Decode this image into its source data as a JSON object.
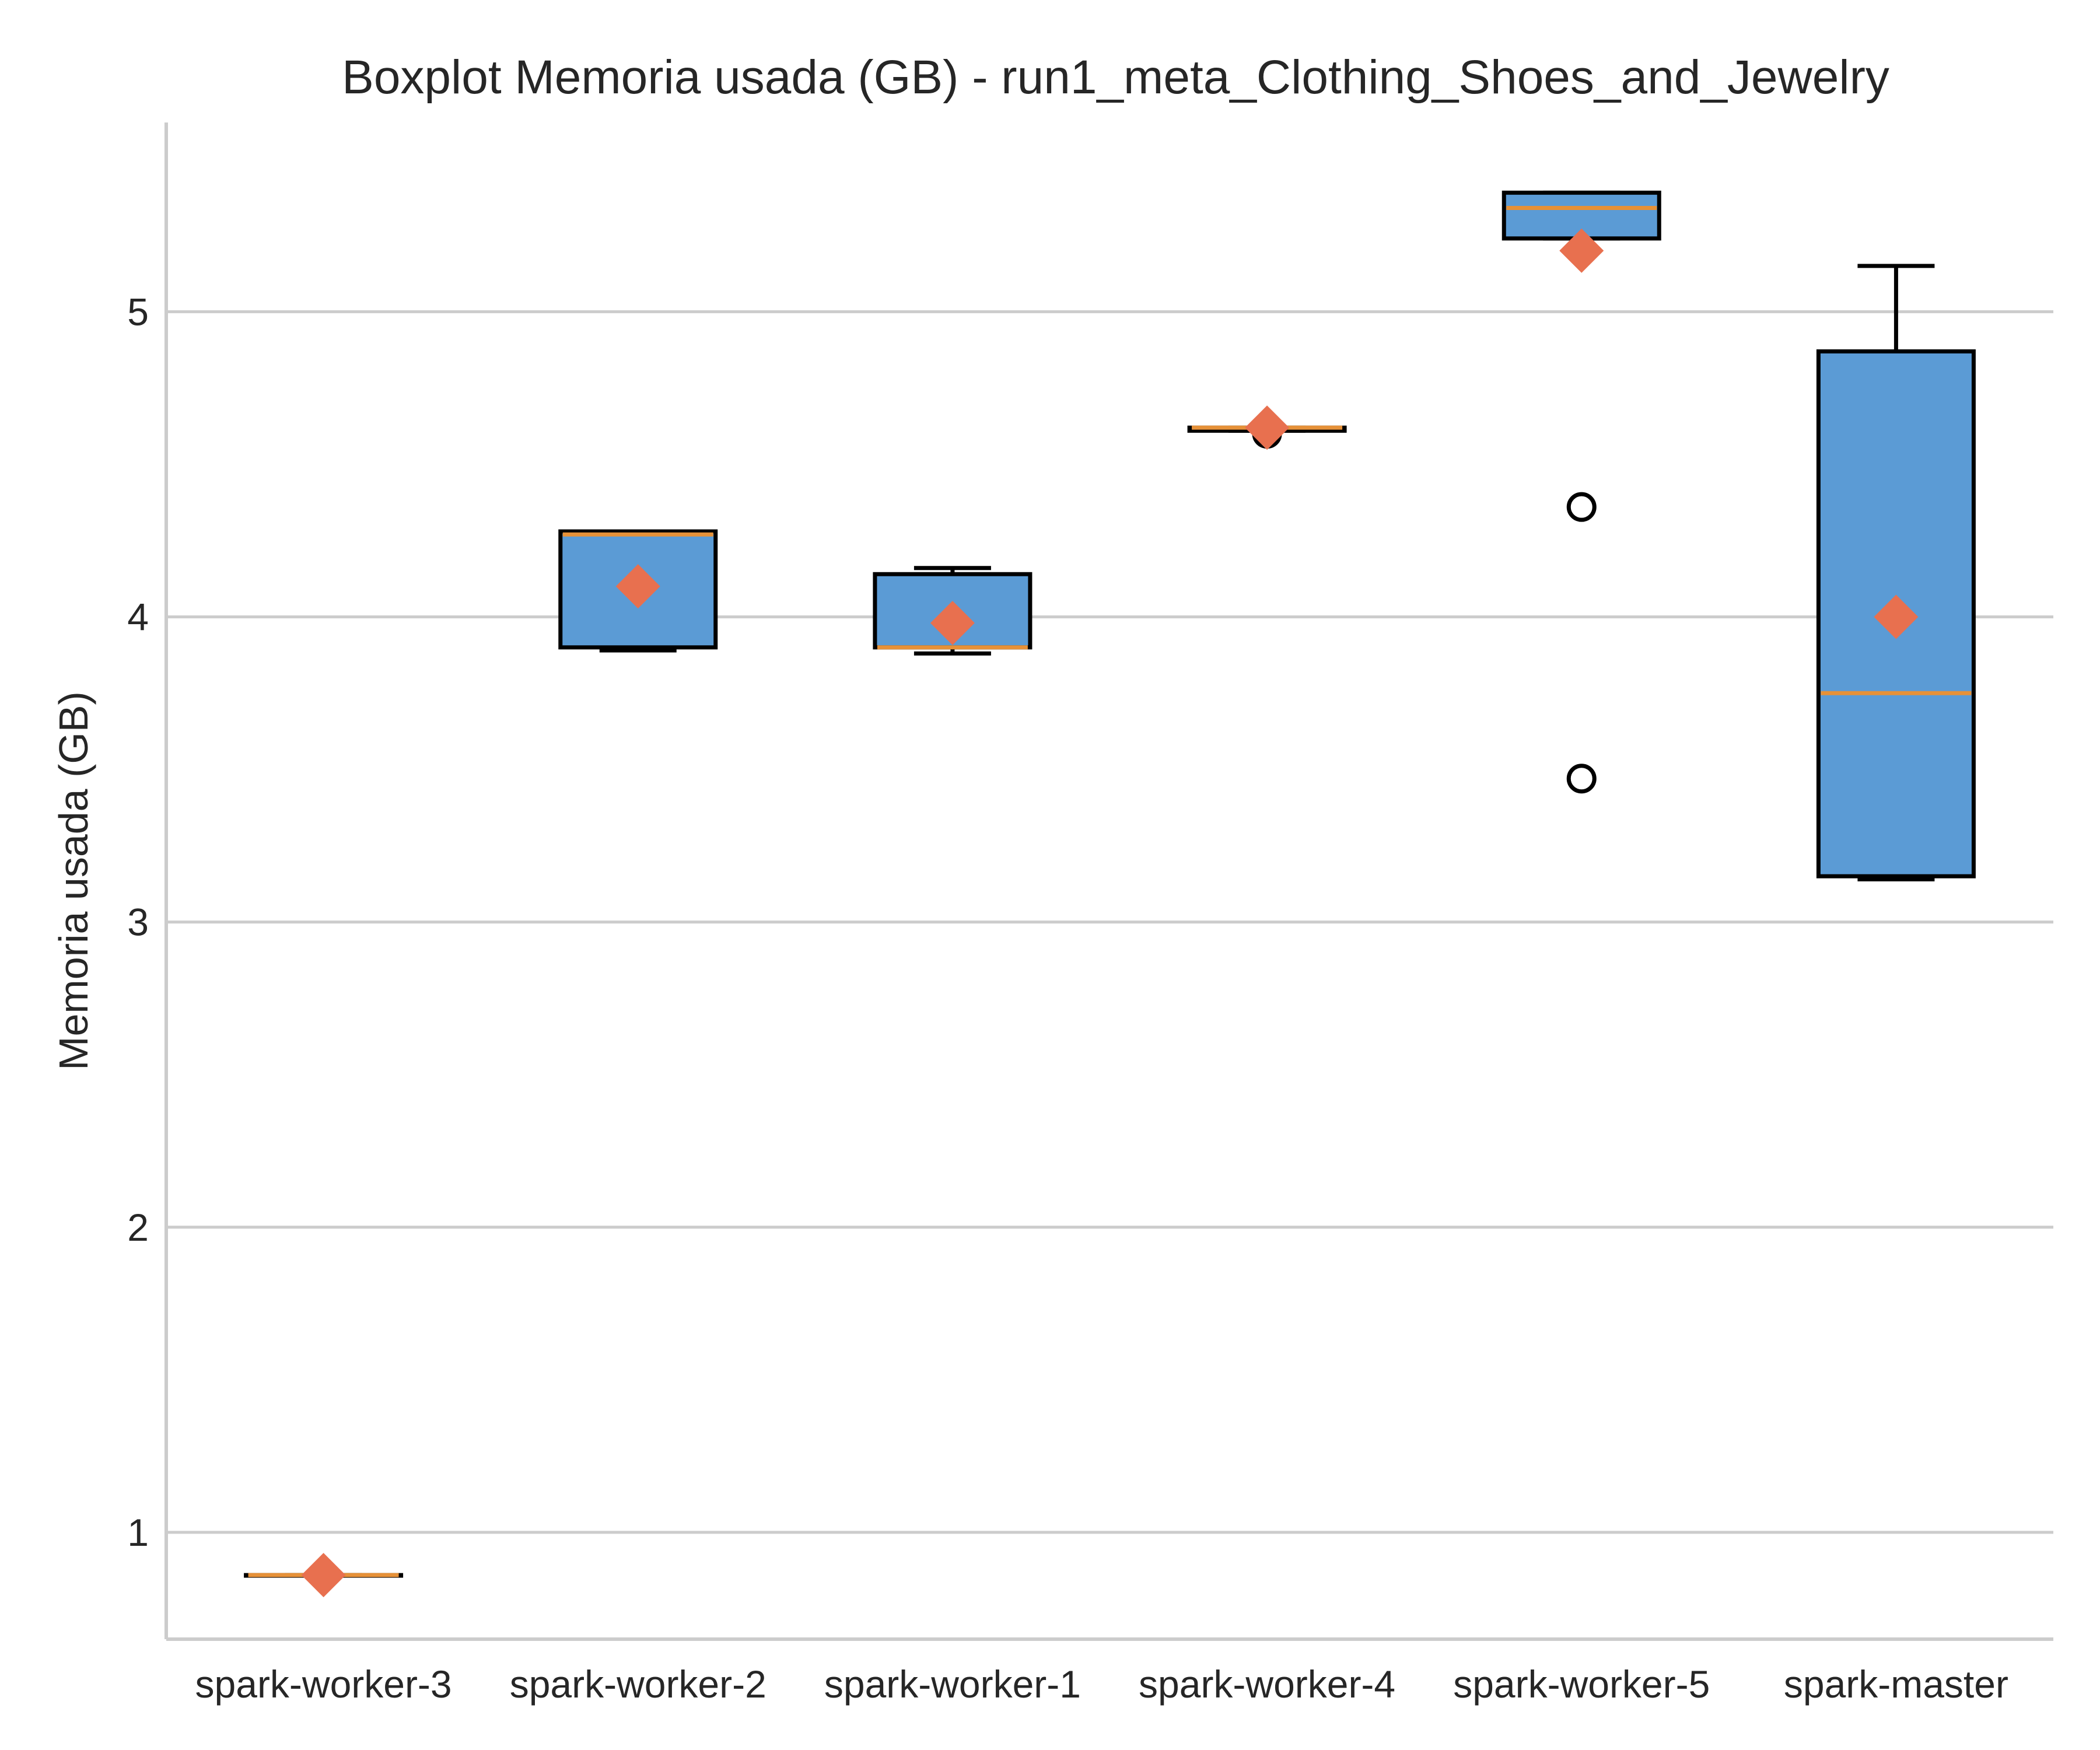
{
  "chart_data": {
    "type": "boxplot",
    "title": "Boxplot Memoria usada (GB) - run1_meta_Clothing_Shoes_and_Jewelry",
    "xlabel": "",
    "ylabel": "Memoria usada (GB)",
    "ylim": [
      0.65,
      5.62
    ],
    "yticks": [
      1,
      2,
      3,
      4,
      5
    ],
    "grid": "horizontal",
    "colors": {
      "box_fill": "#5b9bd5",
      "median": "#e69138",
      "mean_marker": "#e8704f",
      "box_edge": "#000000",
      "grid": "#cccccc"
    },
    "categories": [
      "spark-worker-3",
      "spark-worker-2",
      "spark-worker-1",
      "spark-worker-4",
      "spark-worker-5",
      "spark-master"
    ],
    "boxes": [
      {
        "whislo": 0.86,
        "q1": 0.86,
        "med": 0.86,
        "q3": 0.86,
        "whishi": 0.86,
        "mean": 0.86,
        "fliers": []
      },
      {
        "whislo": 3.89,
        "q1": 3.9,
        "med": 4.27,
        "q3": 4.28,
        "whishi": 4.28,
        "mean": 4.1,
        "fliers": []
      },
      {
        "whislo": 3.88,
        "q1": 3.9,
        "med": 3.9,
        "q3": 4.14,
        "whishi": 4.16,
        "mean": 3.98,
        "fliers": []
      },
      {
        "whislo": 4.61,
        "q1": 4.61,
        "med": 4.62,
        "q3": 4.62,
        "whishi": 4.62,
        "mean": 4.62,
        "fliers": [
          4.6
        ]
      },
      {
        "whislo": 5.24,
        "q1": 5.24,
        "med": 5.34,
        "q3": 5.39,
        "whishi": 5.39,
        "mean": 5.2,
        "fliers": [
          4.36,
          3.47
        ]
      },
      {
        "whislo": 3.14,
        "q1": 3.15,
        "med": 3.75,
        "q3": 4.87,
        "whishi": 5.15,
        "mean": 4.0,
        "fliers": []
      }
    ]
  }
}
